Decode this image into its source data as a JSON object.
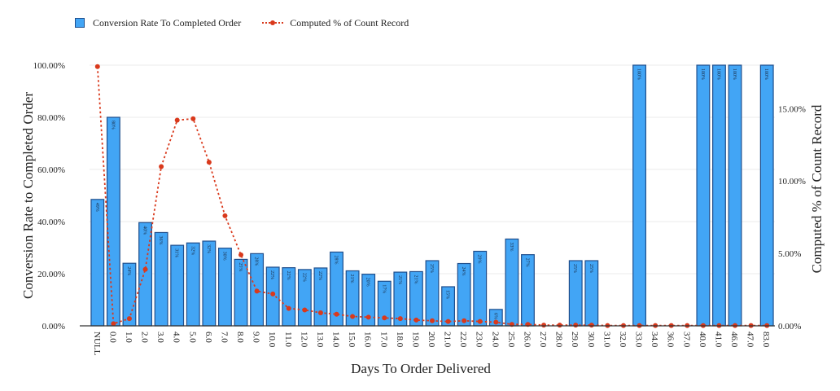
{
  "colors": {
    "bar": "#42a5f5",
    "bar_edge": "#1f4e8c",
    "line": "#d9391c",
    "grid": "#ebebeb",
    "axis": "#333333"
  },
  "legend": {
    "bar_label": "Conversion Rate To Completed Order",
    "line_label": "Computed % of Count Record"
  },
  "chart_data": {
    "type": "bar",
    "xlabel": "Days To Order Delivered",
    "ylabel": "Conversion Rate to Completed Order",
    "y2label": "Computed % of Count Record",
    "ylim": [
      0,
      100
    ],
    "y2lim": [
      0,
      18
    ],
    "yticks": [
      "0.00%",
      "20.00%",
      "40.00%",
      "60.00%",
      "80.00%",
      "100.00%"
    ],
    "yticks_values": [
      0,
      20,
      40,
      60,
      80,
      100
    ],
    "y2ticks": [
      "0.00%",
      "5.00%",
      "10.00%",
      "15.00%"
    ],
    "y2ticks_values": [
      0,
      5,
      10,
      15
    ],
    "grid": true,
    "legend_position": "top-left",
    "categories": [
      "NULL",
      "0.0",
      "1.0",
      "2.0",
      "3.0",
      "4.0",
      "5.0",
      "6.0",
      "7.0",
      "8.0",
      "9.0",
      "10.0",
      "11.0",
      "12.0",
      "13.0",
      "14.0",
      "15.0",
      "16.0",
      "17.0",
      "18.0",
      "19.0",
      "20.0",
      "21.0",
      "22.0",
      "23.0",
      "24.0",
      "25.0",
      "26.0",
      "27.0",
      "28.0",
      "29.0",
      "30.0",
      "31.0",
      "32.0",
      "33.0",
      "34.0",
      "36.0",
      "37.0",
      "40.0",
      "41.0",
      "46.0",
      "47.0",
      "83.0"
    ],
    "series": [
      {
        "name": "Conversion Rate To Completed Order",
        "type": "bar",
        "axis": "left",
        "values": [
          48.5,
          80,
          24,
          39.6,
          35.8,
          30.9,
          31.8,
          32.5,
          29.8,
          25.5,
          27.7,
          22.5,
          22.3,
          21.6,
          22.2,
          28.3,
          21.1,
          19.8,
          17.1,
          20.6,
          20.8,
          25,
          15,
          23.9,
          28.6,
          6.3,
          33.3,
          27.3,
          0,
          0,
          25,
          25,
          0,
          0,
          100,
          0,
          0,
          0,
          100,
          100,
          100,
          0,
          100
        ]
      },
      {
        "name": "Computed % of Count Record",
        "type": "line",
        "axis": "right",
        "values": [
          17.9,
          0.15,
          0.5,
          3.9,
          11.0,
          14.2,
          14.3,
          11.3,
          7.6,
          4.9,
          2.4,
          2.2,
          1.2,
          1.1,
          0.9,
          0.8,
          0.65,
          0.6,
          0.55,
          0.5,
          0.4,
          0.35,
          0.3,
          0.35,
          0.3,
          0.25,
          0.1,
          0.1,
          0.05,
          0.05,
          0.05,
          0.05,
          0.02,
          0.02,
          0.02,
          0.02,
          0.02,
          0.02,
          0.02,
          0.02,
          0.02,
          0.02,
          0.02
        ]
      }
    ],
    "bar_labels": [
      "49%",
      "80%",
      "24%",
      "40%",
      "36%",
      "31%",
      "32%",
      "32%",
      "30%",
      "25%",
      "28%",
      "22%",
      "22%",
      "22%",
      "22%",
      "28%",
      "21%",
      "20%",
      "17%",
      "21%",
      "21%",
      "25%",
      "15%",
      "24%",
      "29%",
      "6%",
      "33%",
      "27%",
      "",
      "",
      "25%",
      "25%",
      "",
      "",
      "100%",
      "",
      "",
      "",
      "100%",
      "100%",
      "100%",
      "",
      "100%"
    ]
  }
}
